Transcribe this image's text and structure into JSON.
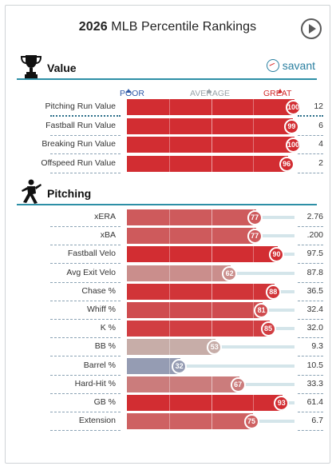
{
  "header": {
    "year": "2026",
    "title_rest": "MLB Percentile Rankings",
    "play_icon": "play-circle-icon"
  },
  "scale": {
    "poor": "POOR",
    "average": "AVERAGE",
    "great": "GREAT"
  },
  "brand": {
    "name": "savant",
    "color": "#2a7fa0",
    "logo_icon": "savant-baseball-icon"
  },
  "sections": {
    "value": {
      "title": "Value",
      "icon": "trophy-icon"
    },
    "pitching": {
      "title": "Pitching",
      "icon": "pitcher-icon"
    }
  },
  "colors": {
    "great": "#d22d32",
    "average": "#c6b7b2",
    "poor": "#3e6db5",
    "track": "#d4e5ea"
  },
  "value_rows": [
    {
      "label": "Pitching Run Value",
      "percentile": 100,
      "value": "12"
    },
    {
      "label": "Fastball Run Value",
      "percentile": 99,
      "value": "6"
    },
    {
      "label": "Breaking Run Value",
      "percentile": 100,
      "value": "4"
    },
    {
      "label": "Offspeed Run Value",
      "percentile": 96,
      "value": "2"
    }
  ],
  "pitching_rows": [
    {
      "label": "xERA",
      "percentile": 77,
      "value": "2.76"
    },
    {
      "label": "xBA",
      "percentile": 77,
      "value": ".200"
    },
    {
      "label": "Fastball Velo",
      "percentile": 90,
      "value": "97.5"
    },
    {
      "label": "Avg Exit Velo",
      "percentile": 62,
      "value": "87.8"
    },
    {
      "label": "Chase %",
      "percentile": 88,
      "value": "36.5"
    },
    {
      "label": "Whiff %",
      "percentile": 81,
      "value": "32.4"
    },
    {
      "label": "K %",
      "percentile": 85,
      "value": "32.0"
    },
    {
      "label": "BB %",
      "percentile": 53,
      "value": "9.3"
    },
    {
      "label": "Barrel %",
      "percentile": 32,
      "value": "10.5"
    },
    {
      "label": "Hard-Hit %",
      "percentile": 67,
      "value": "33.3"
    },
    {
      "label": "GB %",
      "percentile": 93,
      "value": "61.4"
    },
    {
      "label": "Extension",
      "percentile": 75,
      "value": "6.7"
    }
  ]
}
